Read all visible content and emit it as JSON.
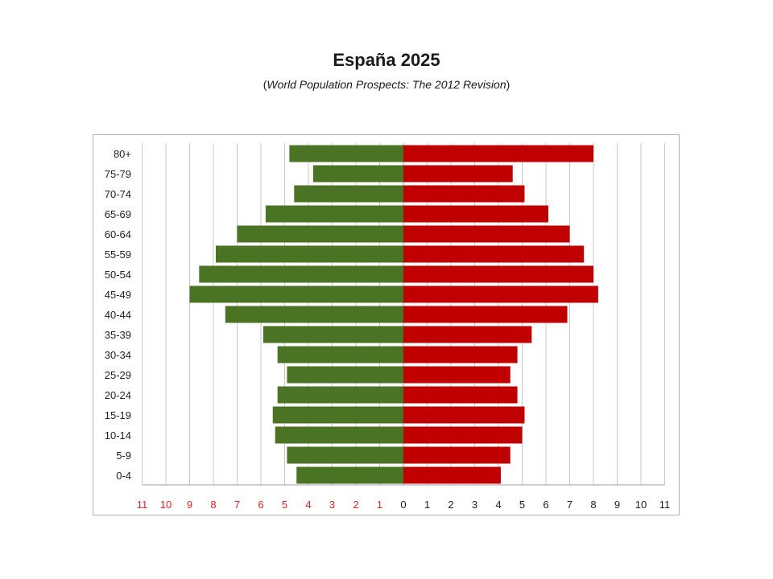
{
  "header": {
    "title": "España 2025",
    "subtitle_open": "(",
    "subtitle_text": "World Population Prospects: The 2012 Revision",
    "subtitle_close": ")"
  },
  "colors": {
    "male_bar": "#4a7323",
    "female_bar": "#c00000",
    "left_tick": "#e02020",
    "right_tick": "#222222",
    "grid": "#c8c8c8"
  },
  "chart_data": {
    "type": "bar",
    "orientation": "horizontal",
    "categories": [
      "80+",
      "75-79",
      "70-74",
      "65-69",
      "60-64",
      "55-59",
      "50-54",
      "45-49",
      "40-44",
      "35-39",
      "30-34",
      "25-29",
      "20-24",
      "15-19",
      "10-14",
      "5-9",
      "0-4"
    ],
    "series": [
      {
        "side": "left",
        "values": [
          4.8,
          3.8,
          4.6,
          5.8,
          7.0,
          7.9,
          8.6,
          9.0,
          7.5,
          5.9,
          5.3,
          4.9,
          5.3,
          5.5,
          5.4,
          4.9,
          4.5
        ]
      },
      {
        "side": "right",
        "values": [
          8.0,
          4.6,
          5.1,
          6.1,
          7.0,
          7.6,
          8.0,
          8.2,
          6.9,
          5.4,
          4.8,
          4.5,
          4.8,
          5.1,
          5.0,
          4.5,
          4.1
        ]
      }
    ],
    "xlim": [
      -11,
      11
    ],
    "x_ticks_left": [
      "11",
      "10",
      "9",
      "8",
      "7",
      "6",
      "5",
      "4",
      "3",
      "2",
      "1"
    ],
    "x_ticks_right": [
      "0",
      "1",
      "2",
      "3",
      "4",
      "5",
      "6",
      "7",
      "8",
      "9",
      "10",
      "11"
    ],
    "grid": true
  }
}
